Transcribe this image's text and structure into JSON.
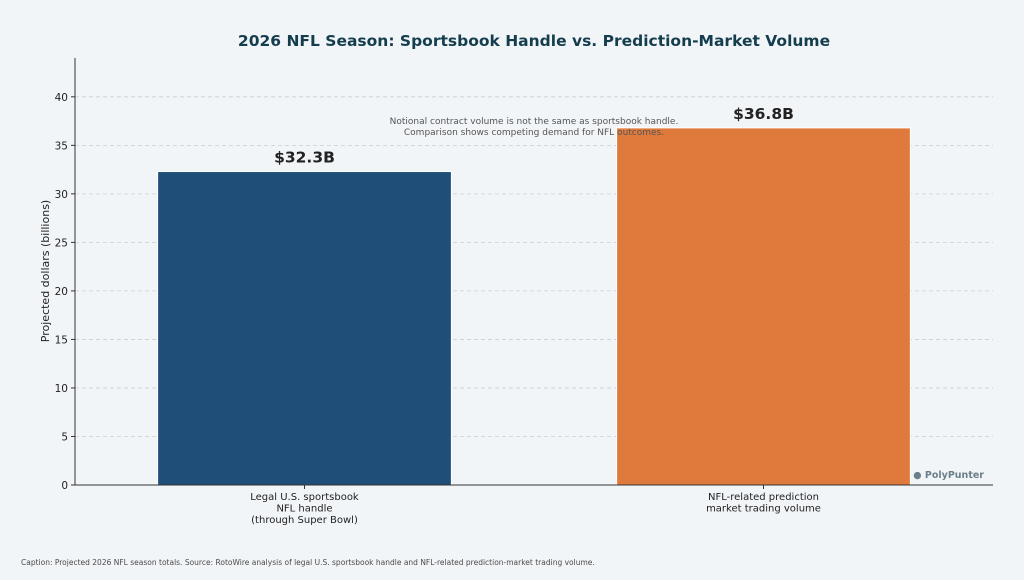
{
  "chart_data": {
    "type": "bar",
    "title": "2026 NFL Season: Sportsbook Handle vs. Prediction-Market Volume",
    "ylabel": "Projected dollars (billions)",
    "xlabel": "",
    "ylim": [
      0,
      44
    ],
    "yticks": [
      0,
      5,
      10,
      15,
      20,
      25,
      30,
      35,
      40
    ],
    "grid": true,
    "categories": [
      [
        "Legal U.S. sportsbook",
        "NFL handle",
        "(through Super Bowl)"
      ],
      [
        "NFL-related prediction",
        "market trading volume"
      ]
    ],
    "values": [
      32.3,
      36.8
    ],
    "data_labels": [
      "$32.3B",
      "$36.8B"
    ],
    "colors": [
      "#1f4e79",
      "#e07a3c"
    ],
    "annotation": [
      "Notional contract volume is not the same as sportsbook handle.",
      "Comparison shows competing demand for NFL outcomes."
    ],
    "watermark": "● PolyPunter"
  },
  "caption": "Caption: Projected 2026 NFL season totals. Source: RotoWire analysis of legal U.S. sportsbook handle and NFL-related prediction-market trading volume.",
  "colors": {
    "background": "#f2f5f8",
    "title": "#143d4d",
    "axis": "#333333",
    "grid": "#c8cfd6",
    "watermark": "#6b7f8a"
  }
}
